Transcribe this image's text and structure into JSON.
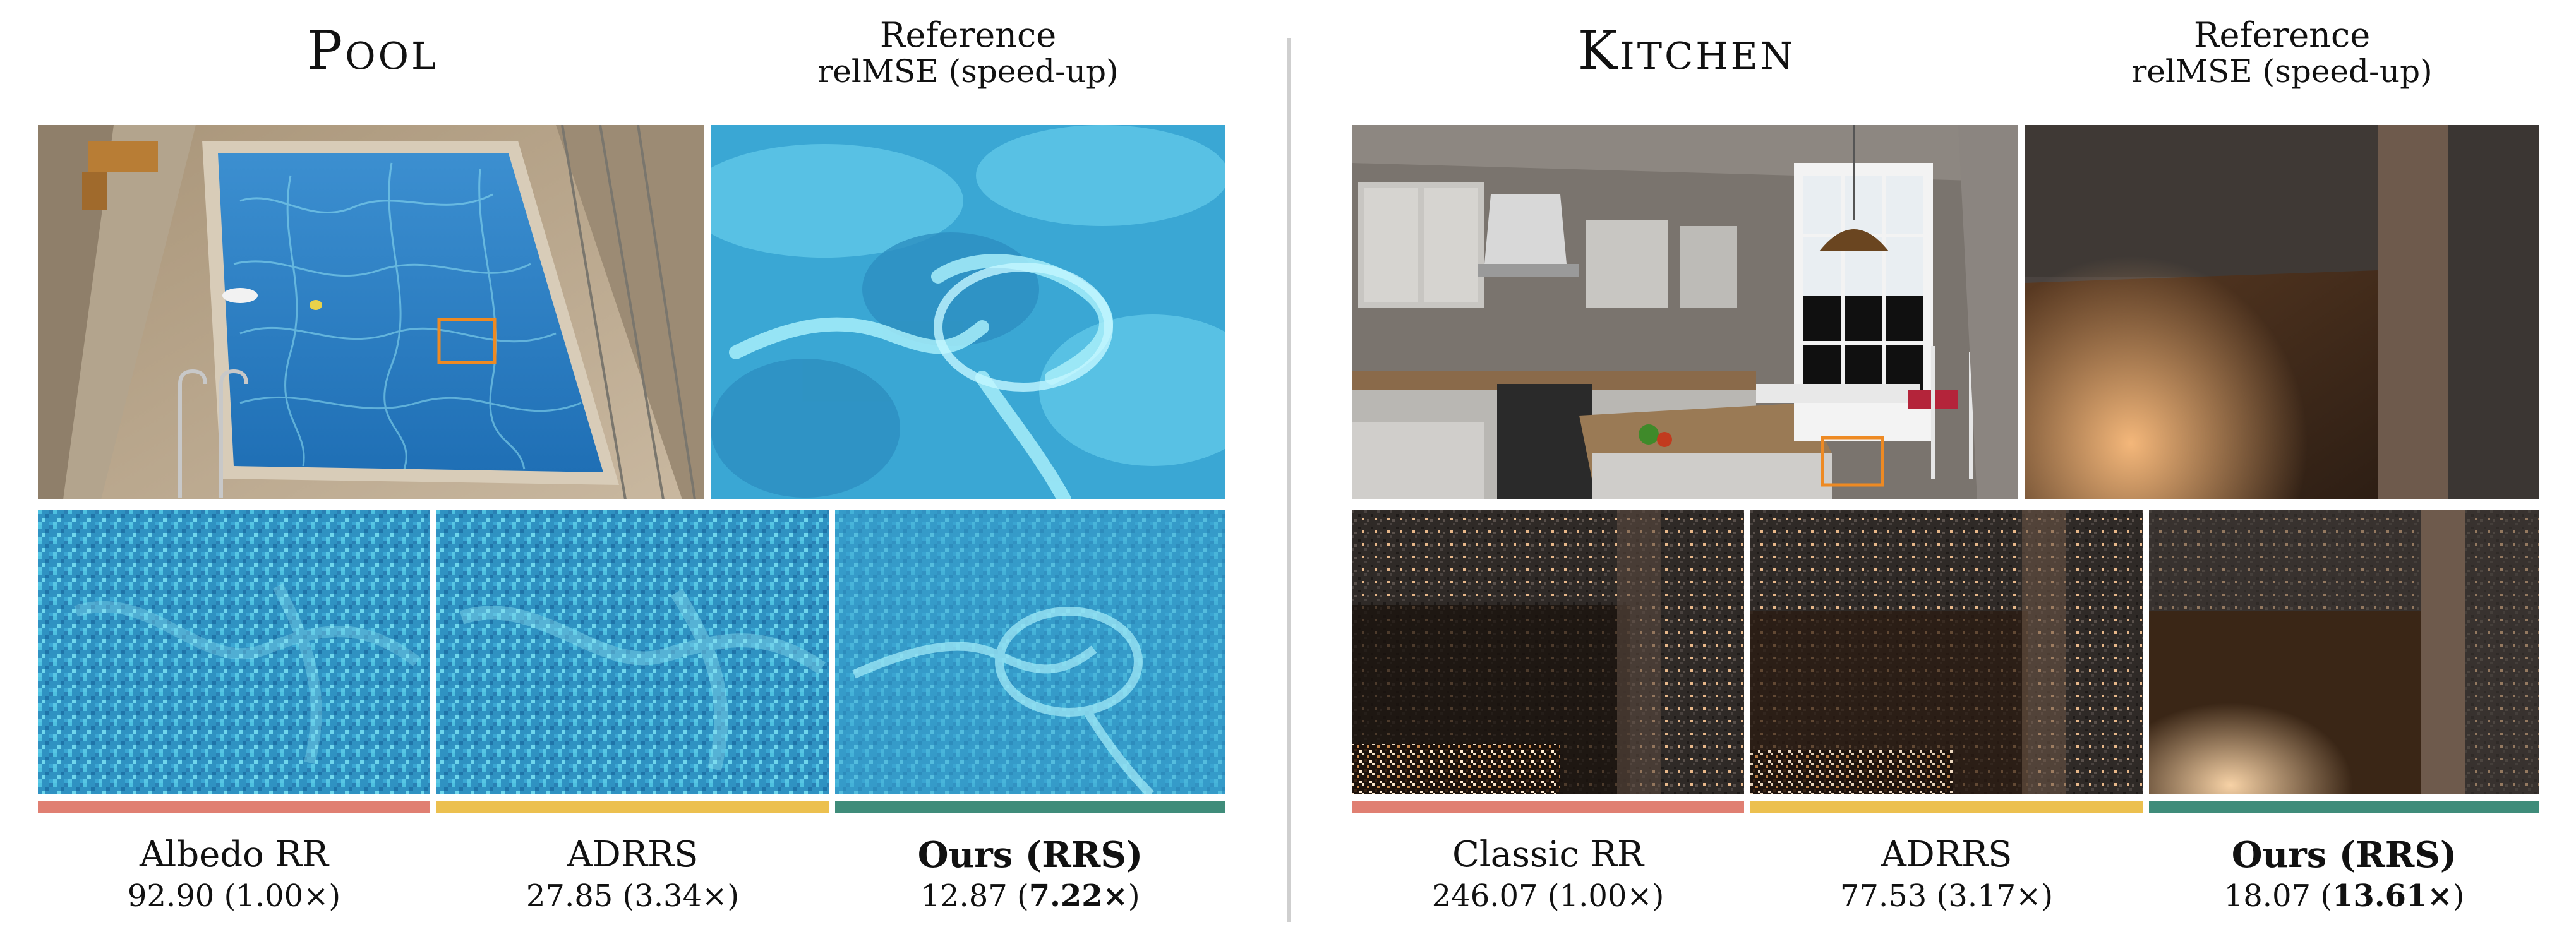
{
  "colors": {
    "classic": "#e07f72",
    "adrrs": "#ecc04f",
    "ours": "#3f8c7a",
    "highlight": "#ee8a23"
  },
  "left": {
    "title": "Pool",
    "reference": {
      "line1": "Reference",
      "line2": "relMSE (speed-up)"
    },
    "methods": [
      {
        "name": "Albedo RR",
        "value": "92.90",
        "speedup": "1.00×"
      },
      {
        "name": "ADRRS",
        "value": "27.85",
        "speedup": "3.34×"
      },
      {
        "name": "Ours (RRS)",
        "value": "12.87",
        "speedup": "7.22×"
      }
    ]
  },
  "right": {
    "title": "Kitchen",
    "reference": {
      "line1": "Reference",
      "line2": "relMSE (speed-up)"
    },
    "methods": [
      {
        "name": "Classic RR",
        "value": "246.07",
        "speedup": "1.00×"
      },
      {
        "name": "ADRRS",
        "value": "77.53",
        "speedup": "3.17×"
      },
      {
        "name": "Ours (RRS)",
        "value": "18.07",
        "speedup": "13.61×"
      }
    ]
  }
}
